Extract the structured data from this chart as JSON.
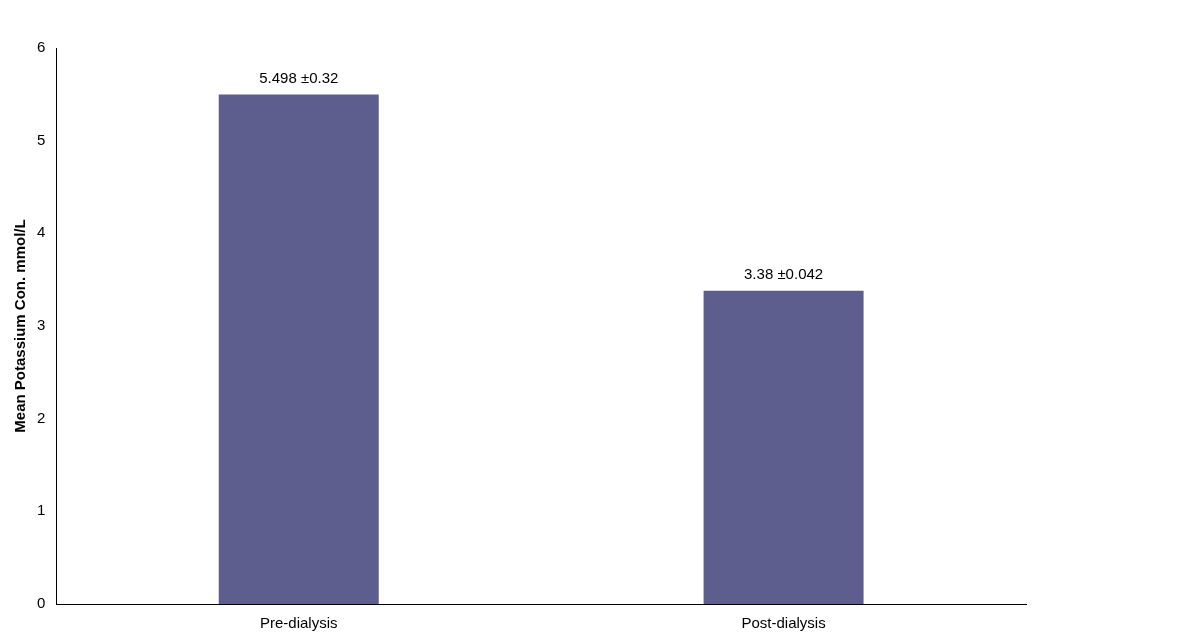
{
  "chart_data": {
    "type": "bar",
    "ylabel": "Mean Potassium Con. mmol/L",
    "categories": [
      "Pre-dialysis",
      "Post-dialysis"
    ],
    "values": [
      5.498,
      3.38
    ],
    "value_labels": [
      "5.498 ±0.32",
      "3.38 ±0.042"
    ],
    "color": "#5e5e8e",
    "ylim": [
      0,
      6
    ],
    "yticks": [
      0,
      1,
      2,
      3,
      4,
      5,
      6
    ],
    "grid": false,
    "legend": false
  }
}
